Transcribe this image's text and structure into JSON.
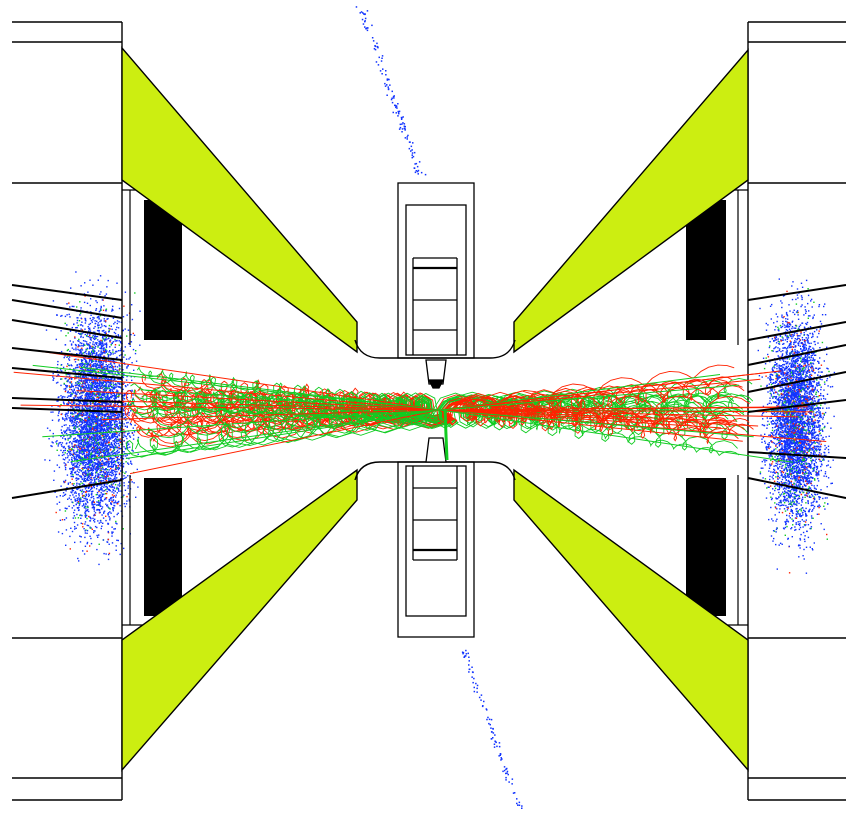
{
  "colors": {
    "background": "#ffffff",
    "outline": "#000000",
    "wedge": "#ccee11",
    "absorber": "#000000",
    "track_red": "#ff2200",
    "track_green": "#11cc22",
    "hits_blue": "#1133ff",
    "beampipe_fill": "#ffffff"
  },
  "components": [
    "left-endcap-block",
    "right-endcap-block",
    "left-upper-wedge",
    "left-lower-wedge",
    "right-upper-wedge",
    "right-lower-wedge",
    "left-absorber",
    "right-absorber",
    "central-detector-upper",
    "central-detector-lower",
    "beam-pipe-upper",
    "beam-pipe-lower"
  ]
}
